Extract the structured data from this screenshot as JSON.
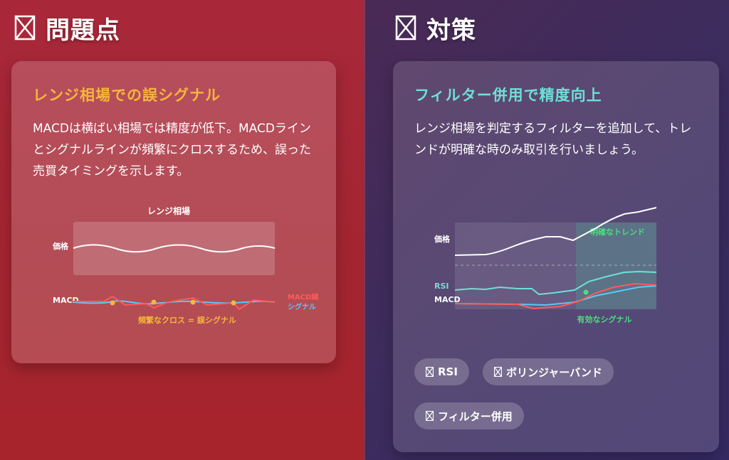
{
  "problem": {
    "heading": "問題点",
    "card_title": "レンジ相場での誤シグナル",
    "description": "MACDは横ばい相場では精度が低下。MACDラインとシグナルラインが頻繁にクロスするため、誤った売買タイミングを示します。",
    "chart": {
      "title": "レンジ相場",
      "price_label": "価格",
      "macd_label": "MACD",
      "legend_macd": "MACD線",
      "legend_signal": "シグナル",
      "annotation": "頻繁なクロス = 誤シグナル"
    }
  },
  "solution": {
    "heading": "対策",
    "card_title": "フィルター併用で精度向上",
    "description": "レンジ相場を判定するフィルターを追加して、トレンドが明確な時のみ取引を行いましょう。",
    "chart": {
      "price_label": "価格",
      "rsi_label": "RSI",
      "macd_label": "MACD",
      "trend_label": "明確なトレンド",
      "signal_annotation": "有効なシグナル"
    },
    "chips": [
      "RSI",
      "ボリンジャーバンド",
      "フィルター併用"
    ]
  },
  "colors": {
    "problem_title": "#f5b73a",
    "solution_title": "#6ee0d6",
    "macd_line": "#ff5a5a",
    "signal_line": "#5ac8fa",
    "cross_marker": "#f5b73a",
    "trend_green": "#4ade80",
    "rsi_line": "#6ee0d6"
  },
  "icons": {
    "problem_heading": "x-box-icon",
    "solution_heading": "x-box-icon",
    "chip": "x-box-icon"
  }
}
